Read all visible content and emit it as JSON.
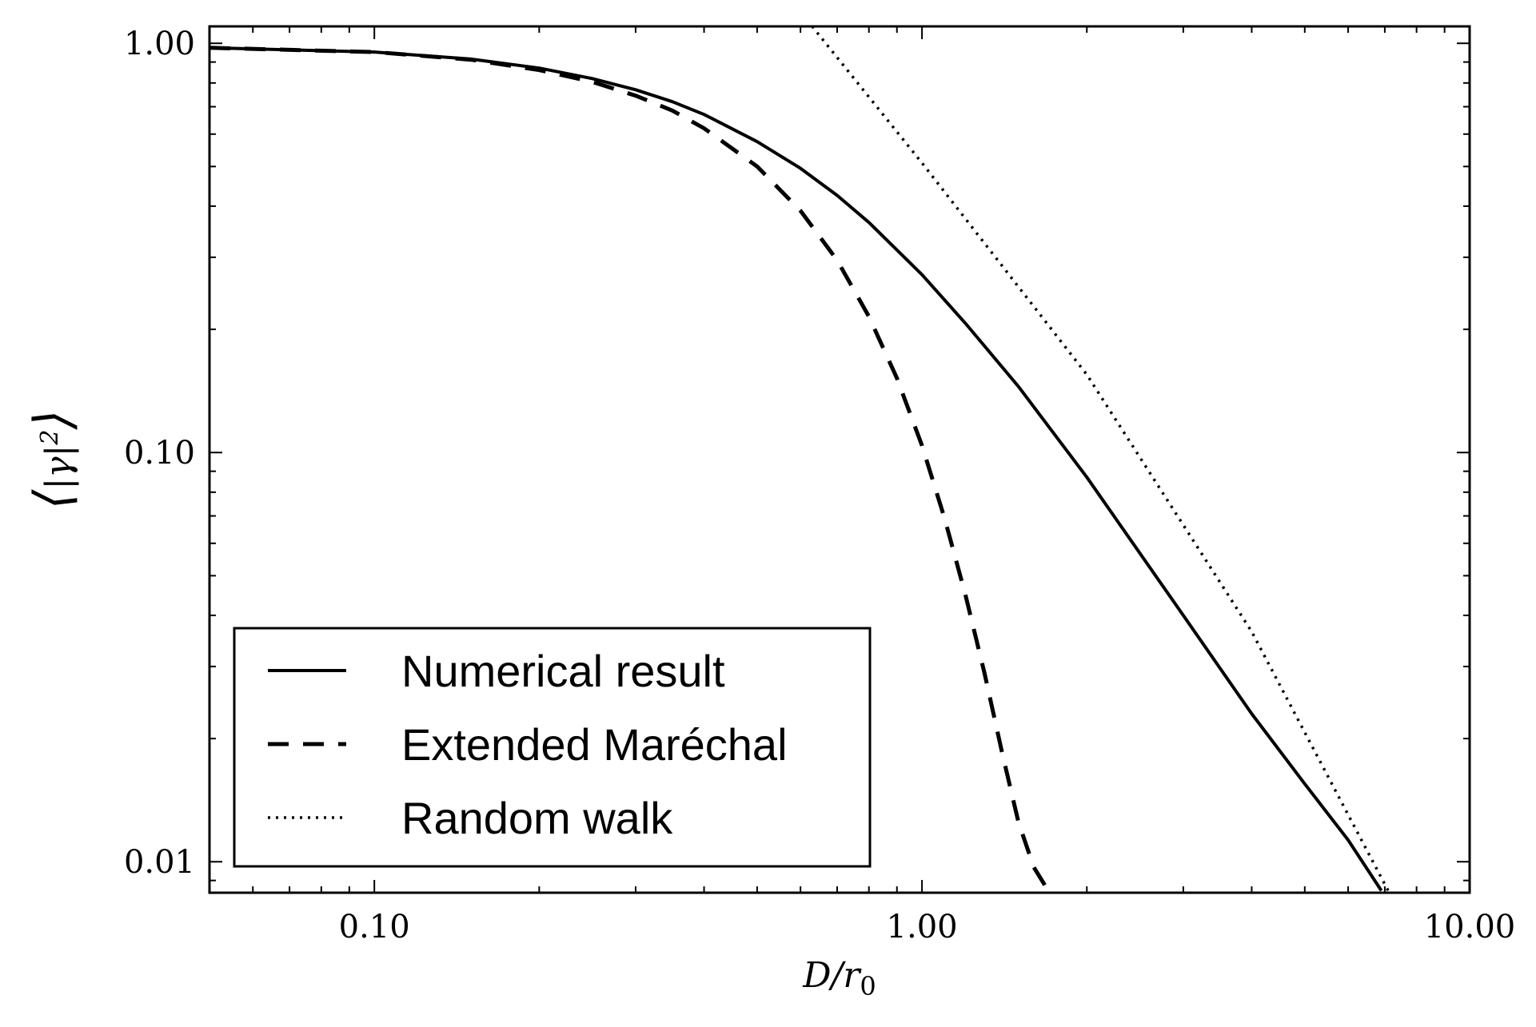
{
  "chart_data": {
    "type": "line",
    "title": "",
    "xlabel": {
      "main": "D/r",
      "sub": "0"
    },
    "ylabel": {
      "gamma": "γ",
      "sup": "2"
    },
    "x_scale": "log",
    "y_scale": "log",
    "xlim": [
      0.05,
      10
    ],
    "ylim": [
      0.0084,
      1.1
    ],
    "x_ticks": [
      {
        "value": 0.1,
        "label": "0.10"
      },
      {
        "value": 1,
        "label": "1.00"
      },
      {
        "value": 10,
        "label": "10.00"
      }
    ],
    "y_ticks": [
      {
        "value": 0.01,
        "label": "0.01"
      },
      {
        "value": 0.1,
        "label": "0.10"
      },
      {
        "value": 1,
        "label": "1.00"
      }
    ],
    "grid": false,
    "legend_position": "bottom-left",
    "series": [
      {
        "name": "Numerical result",
        "style": "solid",
        "color": "#000000",
        "x": [
          0.05,
          0.1,
          0.15,
          0.2,
          0.25,
          0.3,
          0.35,
          0.4,
          0.5,
          0.6,
          0.7,
          0.8,
          1.0,
          1.2,
          1.5,
          2.0,
          3.0,
          4.0,
          5.0,
          6.0,
          6.9
        ],
        "y": [
          0.975,
          0.952,
          0.915,
          0.87,
          0.82,
          0.77,
          0.72,
          0.67,
          0.575,
          0.495,
          0.425,
          0.365,
          0.272,
          0.207,
          0.145,
          0.087,
          0.04,
          0.023,
          0.0155,
          0.0113,
          0.0085
        ]
      },
      {
        "name": "Extended Maréchal",
        "style": "dashed",
        "color": "#000000",
        "x": [
          0.05,
          0.1,
          0.15,
          0.2,
          0.25,
          0.3,
          0.35,
          0.4,
          0.5,
          0.6,
          0.7,
          0.8,
          0.9,
          1.0,
          1.1,
          1.2,
          1.3,
          1.4,
          1.5,
          1.6,
          1.7
        ],
        "y": [
          0.975,
          0.952,
          0.912,
          0.86,
          0.805,
          0.745,
          0.685,
          0.62,
          0.5,
          0.39,
          0.295,
          0.215,
          0.152,
          0.104,
          0.069,
          0.045,
          0.029,
          0.0185,
          0.0125,
          0.0097,
          0.0085
        ]
      },
      {
        "name": "Random walk",
        "style": "dotted",
        "color": "#000000",
        "x": [
          0.63,
          1.0,
          2.0,
          4.0,
          7.1
        ],
        "y": [
          1.1,
          0.51,
          0.155,
          0.0365,
          0.0085
        ]
      }
    ]
  }
}
